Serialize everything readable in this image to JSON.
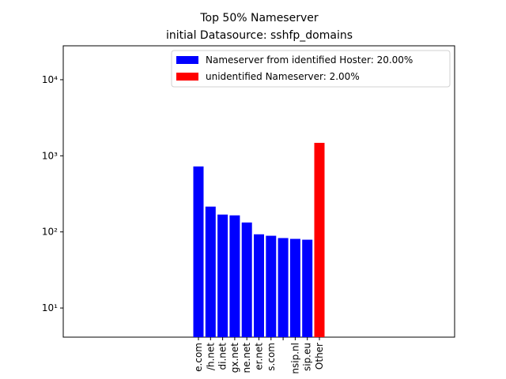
{
  "chart_data": {
    "type": "bar",
    "title": "Top 50% Nameserver",
    "subtitle": "initial Datasource: sshfp_domains",
    "categories": [
      "e.com",
      "/h.net",
      "di.net",
      "gx.net",
      "ne.net",
      "er.net",
      "s.com",
      null,
      "nsip.nl",
      "sip.eu",
      "Other"
    ],
    "values": [
      725,
      215,
      169,
      165,
      133,
      93,
      89,
      83,
      81,
      79,
      1480
    ],
    "colors": [
      "#0000ff",
      "#0000ff",
      "#0000ff",
      "#0000ff",
      "#0000ff",
      "#0000ff",
      "#0000ff",
      "#0000ff",
      "#0000ff",
      "#0000ff",
      "#ff0000"
    ],
    "legend": [
      {
        "label": "Nameserver from identified Hoster: 20.00%",
        "color": "#0000ff"
      },
      {
        "label": "unidentified Nameserver: 2.00%",
        "color": "#ff0000"
      }
    ],
    "legend_position": "upper right",
    "log_scale": true,
    "ylim": [
      4.14,
      27900
    ],
    "yticks": [
      {
        "value": 10,
        "label": "10¹"
      },
      {
        "value": 100,
        "label": "10²"
      },
      {
        "value": 1000,
        "label": "10³"
      },
      {
        "value": 10000,
        "label": "10⁴"
      }
    ]
  }
}
